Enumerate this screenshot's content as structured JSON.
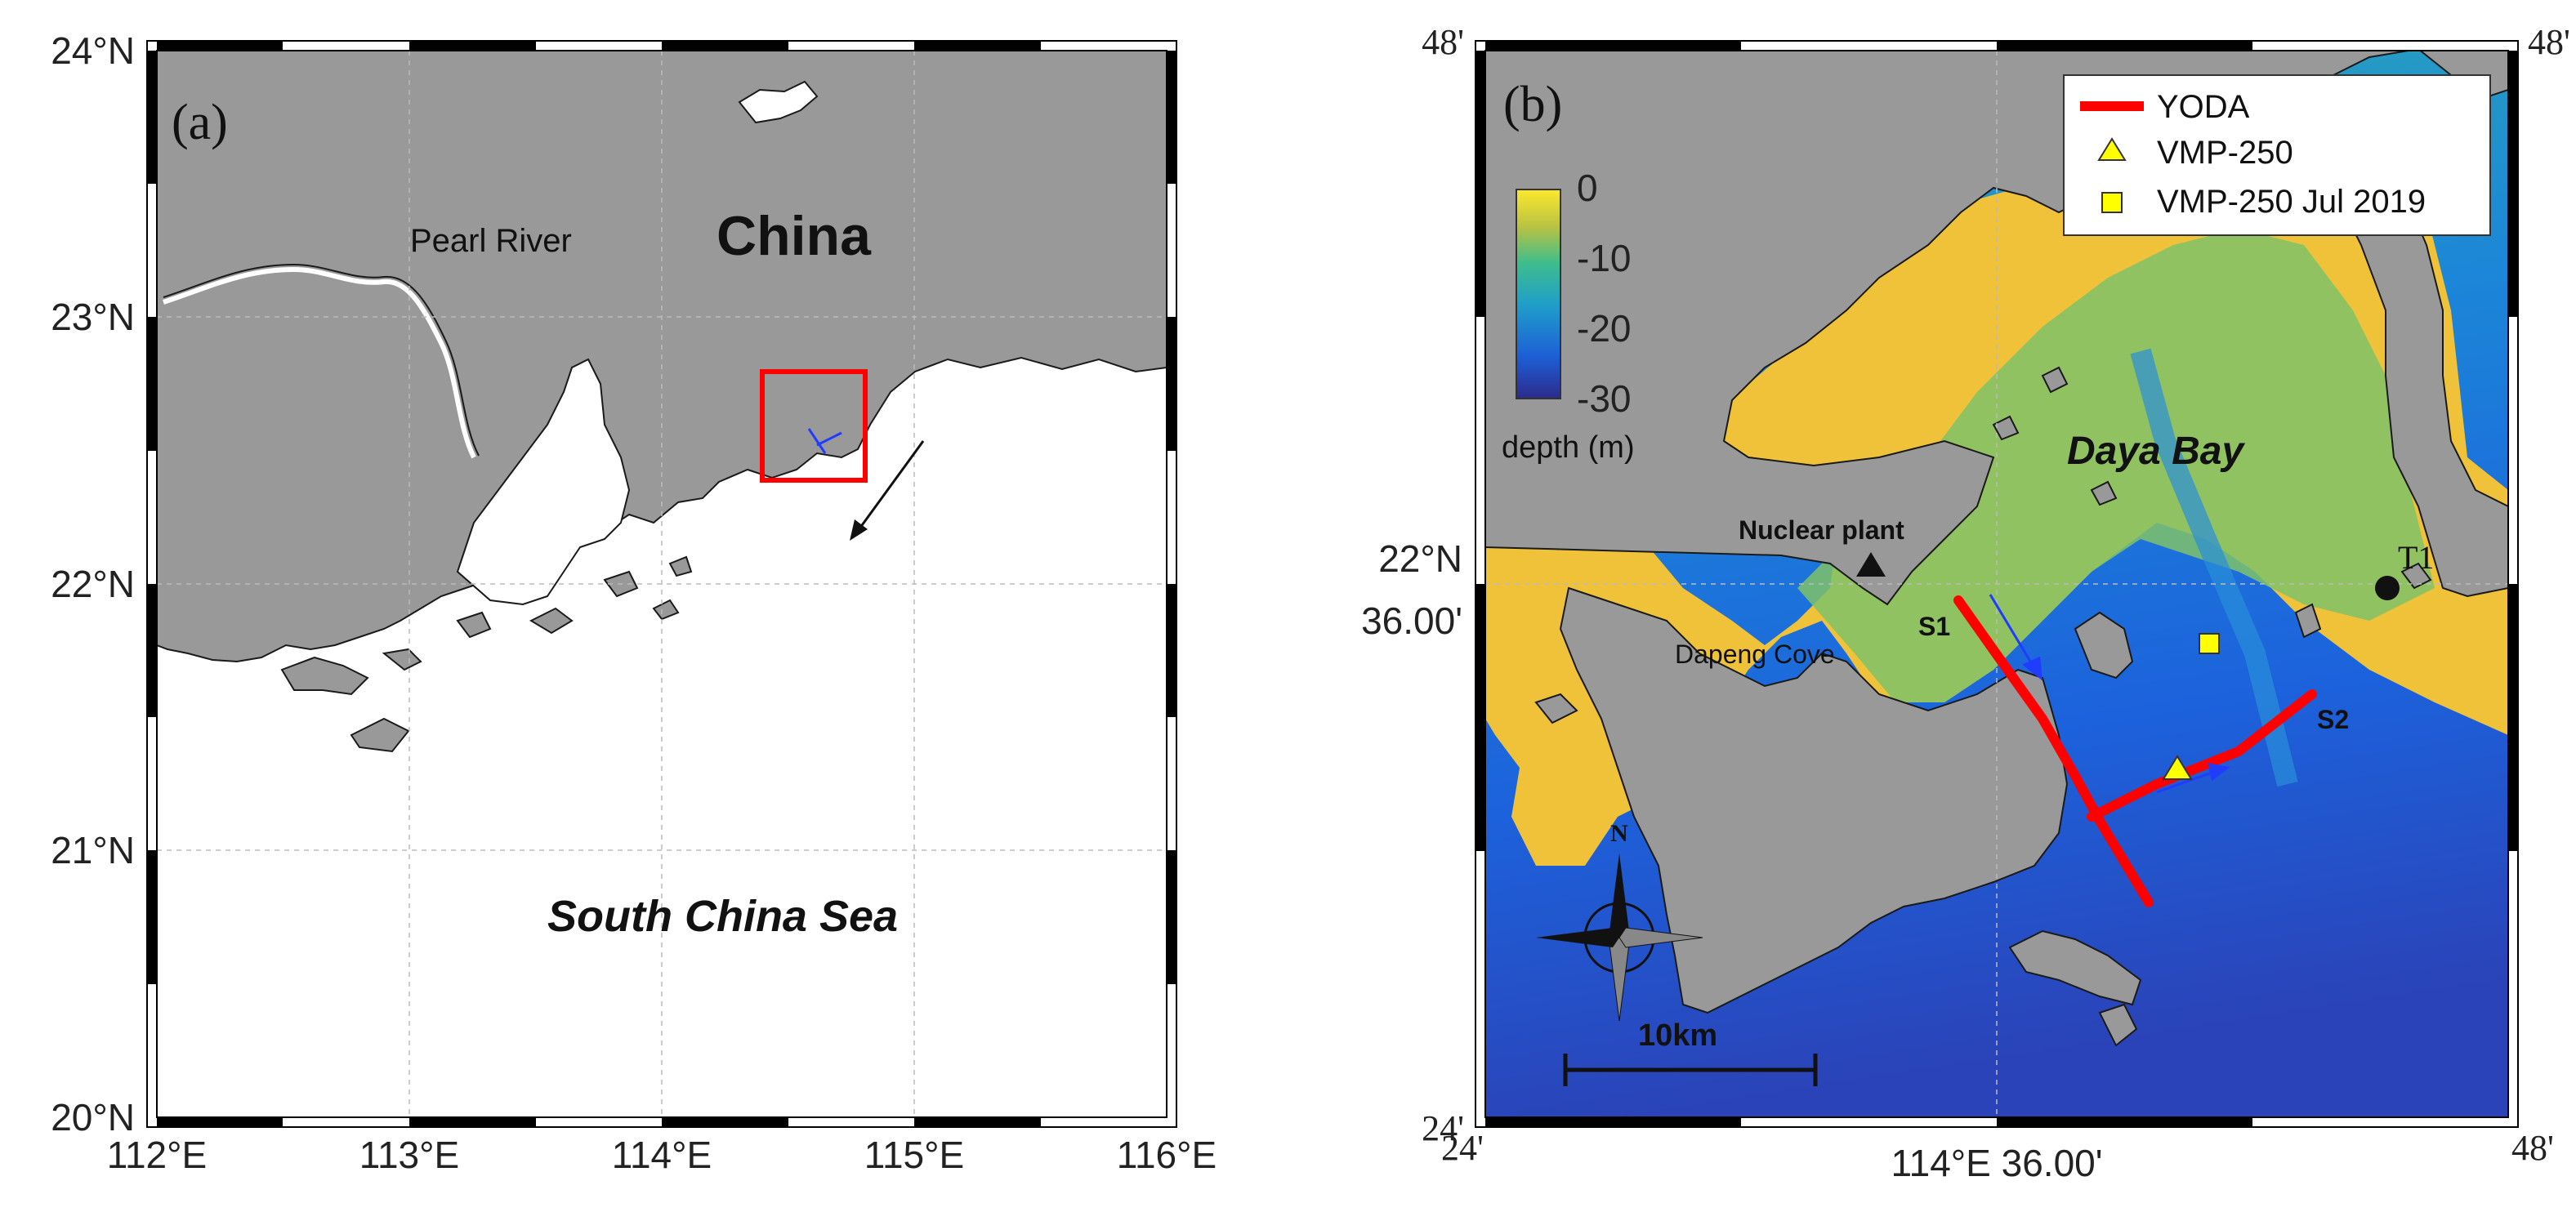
{
  "panel_a": {
    "label": "(a)",
    "y_ticks": [
      "24°N",
      "23°N",
      "22°N",
      "21°N",
      "20°N"
    ],
    "x_ticks": [
      "112°E",
      "113°E",
      "114°E",
      "115°E",
      "116°E"
    ],
    "place_labels": {
      "country": "China",
      "river": "Pearl River",
      "sea": "South China Sea"
    }
  },
  "panel_b": {
    "label": "(b)",
    "corner_ticks": {
      "top_left": "48'",
      "top_right": "48'",
      "bottom_left": "24'",
      "bottom_right_y": "24'",
      "bottom_left_x": "24'",
      "bottom_right_x": "48'"
    },
    "y_tick_mid": [
      "22°N",
      "36.00'"
    ],
    "x_tick_mid": "114°E 36.00'",
    "place_labels": {
      "bay": "Daya Bay",
      "nuclear_plant": "Nuclear plant",
      "cove": "Dapeng Cove",
      "station": "T1",
      "section1": "S1",
      "section2": "S2",
      "north": "N",
      "scale": "10km"
    },
    "colorbar": {
      "title": "depth (m)",
      "ticks": [
        "0",
        "-10",
        "-20",
        "-30"
      ],
      "range": [
        -30,
        0
      ]
    },
    "legend": [
      {
        "label": "YODA",
        "symbol": "red-line"
      },
      {
        "label": "VMP-250",
        "symbol": "yellow-triangle"
      },
      {
        "label": "VMP-250 Jul 2019",
        "symbol": "yellow-square"
      }
    ]
  },
  "colors": {
    "land": "#999999",
    "land_stroke": "#1a1a1a",
    "sea_a": "#ffffff",
    "section_red": "#ff0000",
    "arrow_blue": "#1f3cff",
    "marker_yellow": "#ffff00"
  }
}
